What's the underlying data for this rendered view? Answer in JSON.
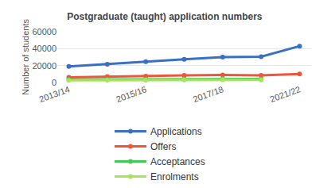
{
  "chart_data": {
    "type": "line",
    "title": "Postgraduate (taught) application numbers",
    "y_label": "Number of students",
    "categories": [
      "2013/14",
      null,
      "2015/16",
      null,
      "2017/18",
      null,
      "2021/22"
    ],
    "series": [
      {
        "name": "Applications",
        "color": "#3a6fc4",
        "values": [
          19000,
          21500,
          24500,
          27500,
          30000,
          30500,
          43000
        ]
      },
      {
        "name": "Offers",
        "color": "#f0553a",
        "values": [
          6000,
          7000,
          7500,
          8500,
          9000,
          8500,
          10000
        ]
      },
      {
        "name": "Acceptances",
        "color": "#3fcb55",
        "values": [
          3500,
          3800,
          4000,
          4200,
          4500,
          4300,
          null
        ]
      },
      {
        "name": "Enrolments",
        "color": "#a6e35e",
        "values": [
          2500,
          2700,
          2900,
          3000,
          3200,
          3100,
          null
        ]
      }
    ],
    "ylim": [
      0,
      60000
    ],
    "yticks": [
      0,
      20000,
      40000,
      60000
    ],
    "grid": true,
    "legend": "bottom",
    "marker": "circle"
  }
}
